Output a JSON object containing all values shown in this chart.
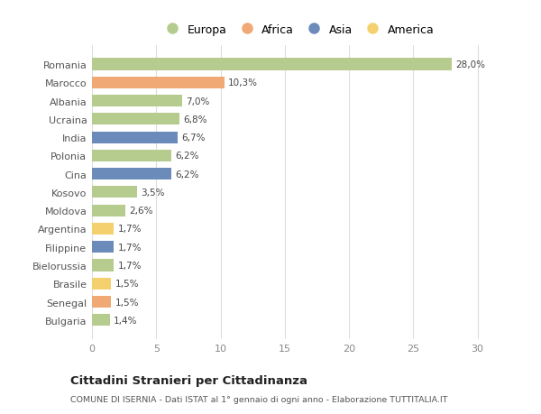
{
  "countries": [
    "Romania",
    "Marocco",
    "Albania",
    "Ucraina",
    "India",
    "Polonia",
    "Cina",
    "Kosovo",
    "Moldova",
    "Argentina",
    "Filippine",
    "Bielorussia",
    "Brasile",
    "Senegal",
    "Bulgaria"
  ],
  "values": [
    28.0,
    10.3,
    7.0,
    6.8,
    6.7,
    6.2,
    6.2,
    3.5,
    2.6,
    1.7,
    1.7,
    1.7,
    1.5,
    1.5,
    1.4
  ],
  "labels": [
    "28,0%",
    "10,3%",
    "7,0%",
    "6,8%",
    "6,7%",
    "6,2%",
    "6,2%",
    "3,5%",
    "2,6%",
    "1,7%",
    "1,7%",
    "1,7%",
    "1,5%",
    "1,5%",
    "1,4%"
  ],
  "continents": [
    "Europa",
    "Africa",
    "Europa",
    "Europa",
    "Asia",
    "Europa",
    "Asia",
    "Europa",
    "Europa",
    "America",
    "Asia",
    "Europa",
    "America",
    "Africa",
    "Europa"
  ],
  "continent_colors": {
    "Europa": "#b5cc8e",
    "Africa": "#f0a875",
    "Asia": "#6b8cba",
    "America": "#f5d06e"
  },
  "legend_order": [
    "Europa",
    "Africa",
    "Asia",
    "America"
  ],
  "title": "Cittadini Stranieri per Cittadinanza",
  "subtitle": "COMUNE DI ISERNIA - Dati ISTAT al 1° gennaio di ogni anno - Elaborazione TUTTITALIA.IT",
  "xlim": [
    0,
    32
  ],
  "xticks": [
    0,
    5,
    10,
    15,
    20,
    25,
    30
  ],
  "background_color": "#ffffff",
  "bar_height": 0.65,
  "grid_color": "#dddddd"
}
